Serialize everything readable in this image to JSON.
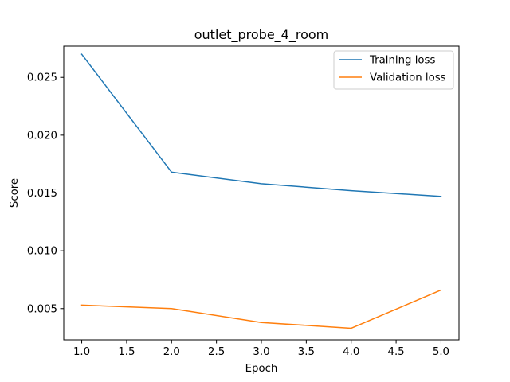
{
  "chart_data": {
    "type": "line",
    "title": "outlet_probe_4_room",
    "xlabel": "Epoch",
    "ylabel": "Score",
    "x": [
      1.0,
      2.0,
      3.0,
      4.0,
      5.0
    ],
    "xlim": [
      0.8,
      5.2
    ],
    "ylim": [
      0.0023,
      0.0277
    ],
    "xticks": [
      1.0,
      1.5,
      2.0,
      2.5,
      3.0,
      3.5,
      4.0,
      4.5,
      5.0
    ],
    "xtick_labels": [
      "1.0",
      "1.5",
      "2.0",
      "2.5",
      "3.0",
      "3.5",
      "4.0",
      "4.5",
      "5.0"
    ],
    "yticks": [
      0.005,
      0.01,
      0.015,
      0.02,
      0.025
    ],
    "ytick_labels": [
      "0.005",
      "0.010",
      "0.015",
      "0.020",
      "0.025"
    ],
    "grid": false,
    "legend_position": "top-right",
    "series": [
      {
        "name": "Training loss",
        "color": "#1f77b4",
        "values": [
          0.027,
          0.0168,
          0.0158,
          0.0152,
          0.0147
        ]
      },
      {
        "name": "Validation loss",
        "color": "#ff7f0e",
        "values": [
          0.0053,
          0.005,
          0.0038,
          0.0033,
          0.0066
        ]
      }
    ]
  }
}
